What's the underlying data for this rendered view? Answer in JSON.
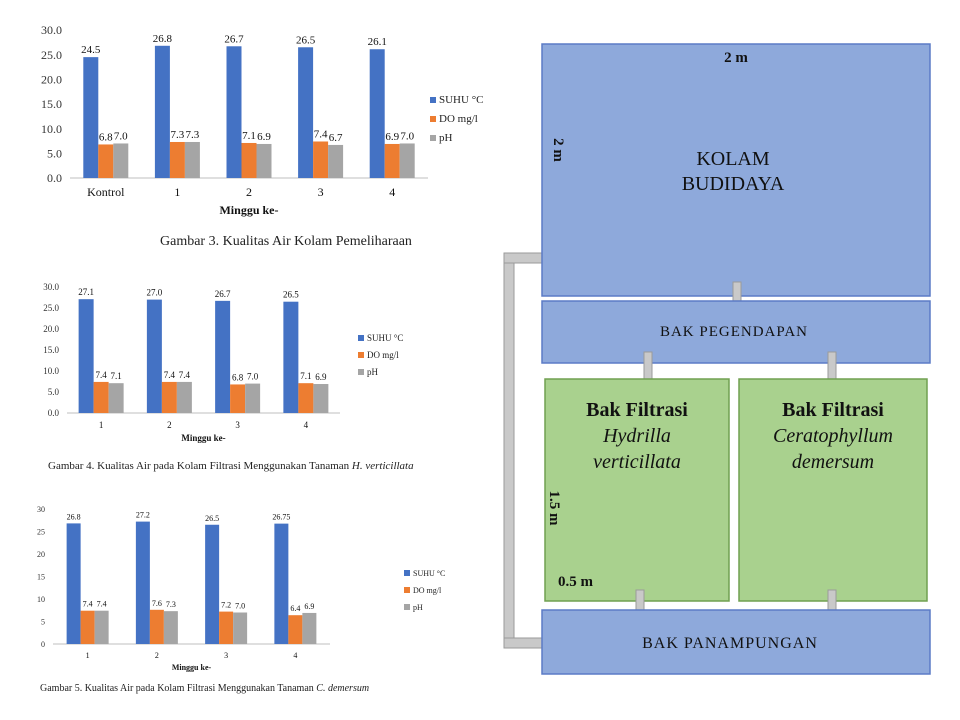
{
  "chart_data": [
    {
      "type": "bar",
      "categories": [
        "Kontrol",
        "1",
        "2",
        "3",
        "4"
      ],
      "series": [
        {
          "name": "SUHU °C",
          "values": [
            24.5,
            26.8,
            26.7,
            26.5,
            26.1
          ],
          "labels": [
            "24.5",
            "26.8",
            "26.7",
            "26.5",
            "26.1"
          ],
          "color": "#4472C4"
        },
        {
          "name": "DO mg/l",
          "values": [
            6.8,
            7.3,
            7.1,
            7.4,
            6.9
          ],
          "labels": [
            "6.8",
            "7.3",
            "7.1",
            "7.4",
            "6.9"
          ],
          "color": "#ED7D31"
        },
        {
          "name": "pH",
          "values": [
            7.0,
            7.3,
            6.9,
            6.7,
            7.0
          ],
          "labels": [
            "7.0",
            "7.3",
            "6.9",
            "6.7",
            "7.0"
          ],
          "color": "#A5A5A5"
        }
      ],
      "yticks": [
        "0.0",
        "5.0",
        "10.0",
        "15.0",
        "20.0",
        "25.0",
        "30.0"
      ],
      "ylim": [
        0,
        30
      ],
      "xlabel": "Minggu ke-",
      "ylabel": "",
      "legend": "right",
      "grid": false
    },
    {
      "type": "bar",
      "categories": [
        "1",
        "2",
        "3",
        "4"
      ],
      "series": [
        {
          "name": "SUHU °C",
          "values": [
            27.1,
            27.0,
            26.7,
            26.5
          ],
          "labels": [
            "27.1",
            "27.0",
            "26.7",
            "26.5"
          ],
          "color": "#4472C4"
        },
        {
          "name": "DO mg/l",
          "values": [
            7.4,
            7.4,
            6.8,
            7.1
          ],
          "labels": [
            "7.4",
            "7.4",
            "6.8",
            "7.1"
          ],
          "color": "#ED7D31"
        },
        {
          "name": "pH",
          "values": [
            7.1,
            7.4,
            7.0,
            6.9
          ],
          "labels": [
            "7.1",
            "7.4",
            "7.0",
            "6.9"
          ],
          "color": "#A5A5A5"
        }
      ],
      "yticks": [
        "0.0",
        "5.0",
        "10.0",
        "15.0",
        "20.0",
        "25.0",
        "30.0"
      ],
      "ylim": [
        0,
        30
      ],
      "xlabel": "Minggu ke-",
      "ylabel": "",
      "legend": "right",
      "grid": false
    },
    {
      "type": "bar",
      "categories": [
        "1",
        "2",
        "3",
        "4"
      ],
      "series": [
        {
          "name": "SUHU °C",
          "values": [
            26.8,
            27.2,
            26.5,
            26.75
          ],
          "labels": [
            "26.8",
            "27.2",
            "26.5",
            "26.75"
          ],
          "color": "#4472C4"
        },
        {
          "name": "DO mg/l",
          "values": [
            7.4,
            7.6,
            7.2,
            6.4
          ],
          "labels": [
            "7.4",
            "7.6",
            "7.2",
            "6.4"
          ],
          "color": "#ED7D31"
        },
        {
          "name": "pH",
          "values": [
            7.4,
            7.3,
            7.0,
            6.9
          ],
          "labels": [
            "7.4",
            "7.3",
            "7.0",
            "6.9"
          ],
          "color": "#A5A5A5"
        }
      ],
      "yticks": [
        "0",
        "5",
        "10",
        "15",
        "20",
        "25",
        "30"
      ],
      "ylim": [
        0,
        30
      ],
      "xlabel": "Minggu ke-",
      "ylabel": "",
      "legend": "right",
      "grid": false
    }
  ],
  "captions": {
    "fig3": "Gambar 3. Kualitas Air Kolam Pemeliharaan",
    "fig4_prefix": "Gambar 4. Kualitas Air pada Kolam Filtrasi Menggunakan Tanaman ",
    "fig4_species": "H. verticillata",
    "fig5_prefix": "Gambar 5. Kualitas Air pada Kolam Filtrasi Menggunakan Tanaman ",
    "fig5_species": "C. demersum"
  },
  "diagram": {
    "kolam_line1": "KOLAM",
    "kolam_line2": "BUDIDAYA",
    "width_label": "2 m",
    "height_label": "2 m",
    "pegendapan": "BAK PEGENDAPAN",
    "filter1_title": "Bak Filtrasi",
    "filter1_species1": "Hydrilla",
    "filter1_species2": "verticillata",
    "filter2_title": "Bak Filtrasi",
    "filter2_species1": "Ceratophyllum",
    "filter2_species2": "demersum",
    "filter_height_label": "1.5 m",
    "filter_width_label": "0.5 m",
    "panampungan": "BAK PANAMPUNGAN",
    "colors": {
      "blue_box": "#8EA9DB",
      "blue_border": "#5B7BC6",
      "green_box": "#A9D18E",
      "green_border": "#70A050",
      "pipe": "#C9C9C9"
    }
  }
}
